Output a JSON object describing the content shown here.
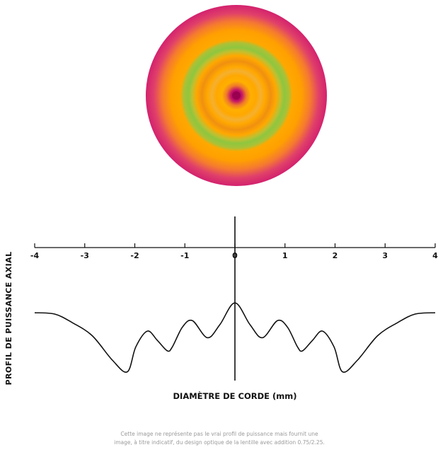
{
  "lens": {
    "colors": {
      "magenta": "#d3226e",
      "orange": "#ffa800",
      "green": "#8ec63f",
      "center": "#b0005b"
    }
  },
  "chart_data": {
    "type": "line",
    "title": "",
    "xlabel": "DIAMÈTRE DE CORDE (mm)",
    "ylabel": "PROFIL DE PUISSANCE AXIAL",
    "xlim": [
      -4,
      4
    ],
    "ticks": [
      "-4",
      "-3",
      "-2",
      "-1",
      "0",
      "1",
      "2",
      "3",
      "4"
    ],
    "tick_values": [
      -4,
      -3,
      -2,
      -1,
      0,
      1,
      2,
      3,
      4
    ],
    "ylim": [
      -1,
      0.4
    ],
    "series": [
      {
        "x": [
          -4.0,
          -3.6,
          -3.25,
          -2.85,
          -2.45,
          -2.15,
          -1.98,
          -1.75,
          -1.55,
          -1.35,
          -1.25,
          -1.05,
          -0.85,
          -0.55,
          -0.3,
          0.0,
          0.3,
          0.55,
          0.85,
          1.05,
          1.25,
          1.35,
          1.55,
          1.75,
          1.98,
          2.15,
          2.45,
          2.85,
          3.25,
          3.6,
          4.0
        ],
        "y": [
          0.0,
          -0.02,
          -0.15,
          -0.35,
          -0.72,
          -0.9,
          -0.52,
          -0.28,
          -0.42,
          -0.58,
          -0.52,
          -0.22,
          -0.12,
          -0.38,
          -0.18,
          0.15,
          -0.18,
          -0.38,
          -0.12,
          -0.22,
          -0.52,
          -0.58,
          -0.42,
          -0.28,
          -0.52,
          -0.9,
          -0.72,
          -0.35,
          -0.15,
          -0.02,
          0.0
        ]
      }
    ],
    "grid": false
  },
  "disclaimer": {
    "line1": "Cette image ne représente pas le vrai profil de puissance mais fournit une",
    "line2": "image, à titre indicatif, du design optique de la lentille avec addition 0.75/2.25."
  }
}
